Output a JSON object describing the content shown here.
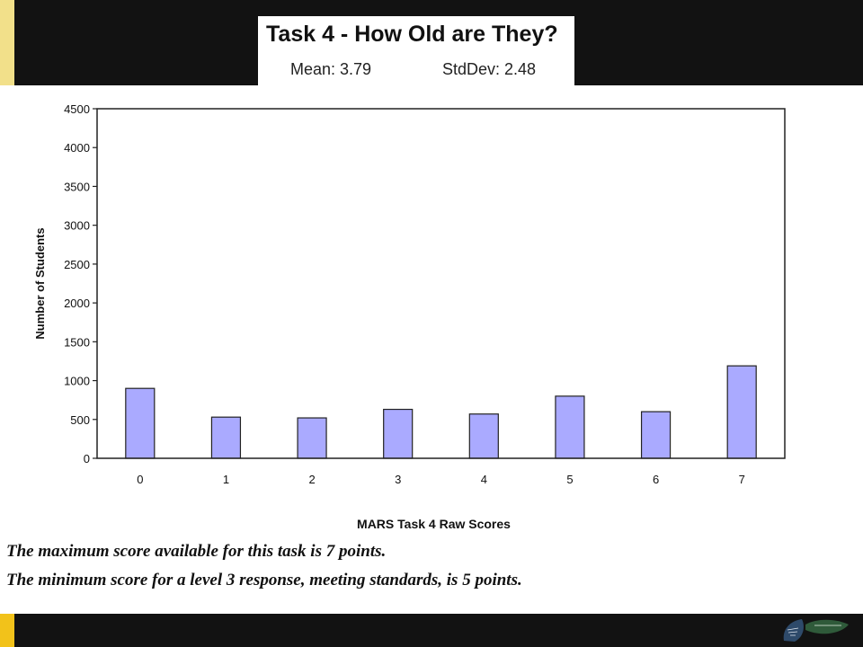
{
  "header": {
    "title": "Task 4 - How Old are They?",
    "mean_label": "Mean: 3.79",
    "stddev_label": "StdDev: 2.48"
  },
  "chart_data": {
    "type": "bar",
    "categories": [
      "0",
      "1",
      "2",
      "3",
      "4",
      "5",
      "6",
      "7"
    ],
    "values": [
      900,
      530,
      520,
      630,
      570,
      800,
      600,
      1190
    ],
    "xlabel": "MARS Task 4 Raw Scores",
    "ylabel": "Number of Students",
    "ylim": [
      0,
      4500
    ],
    "yticks": [
      0,
      500,
      1000,
      1500,
      2000,
      2500,
      3000,
      3500,
      4000,
      4500
    ],
    "grid": false,
    "bar_color": "#aaaaff"
  },
  "footnotes": {
    "line1": "The maximum score available for this task is 7 points.",
    "line2": "The minimum score for a level 3 response, meeting standards, is 5 points."
  },
  "colors": {
    "band": "#121212",
    "accent_top": "#f2e08a",
    "accent_bottom": "#f2c21a",
    "logo": "#2e4a6a"
  }
}
